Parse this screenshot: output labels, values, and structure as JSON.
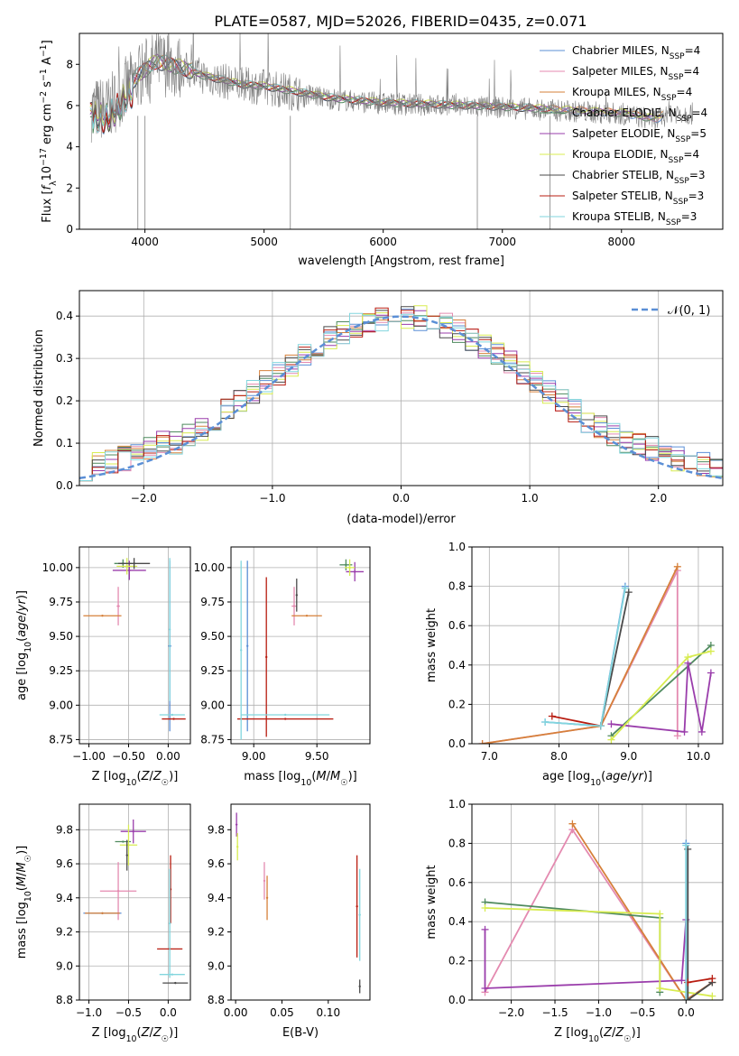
{
  "figure_title": "PLATE=0587, MJD=52026, FIBERID=0435, z=0.071",
  "colors": {
    "Chabrier MILES": "#5b8fd6",
    "Salpeter MILES": "#e48ab0",
    "Kroupa MILES": "#d6803a",
    "Chabrier ELODIE": "#4f8a5e",
    "Salpeter ELODIE": "#9a3dab",
    "Kroupa ELODIE": "#d8ec50",
    "Chabrier STELIB": "#4a4a4a",
    "Salpeter STELIB": "#b81c10",
    "Kroupa STELIB": "#82d6de",
    "data": "#7f7f7f",
    "normal": "#5b8fd6"
  },
  "chart_data": [
    {
      "type": "line",
      "name": "spectrum",
      "xlabel": "wavelength [Angstrom, rest frame]",
      "ylabel": "Flux [f_λ 10^-17 erg cm^-2 s^-1 A^-1]",
      "xlim": [
        3450,
        8850
      ],
      "ylim": [
        0,
        9.5
      ],
      "xticks": [
        4000,
        5000,
        6000,
        7000,
        8000
      ],
      "yticks": [
        0,
        2,
        4,
        6,
        8
      ],
      "grid": false,
      "legend": "right",
      "legend_entries": [
        {
          "key": "Chabrier MILES",
          "label": "Chabrier MILES, N",
          "sub": "SSP",
          "tail": "=4"
        },
        {
          "key": "Salpeter MILES",
          "label": "Salpeter MILES, N",
          "sub": "SSP",
          "tail": "=4"
        },
        {
          "key": "Kroupa MILES",
          "label": "Kroupa MILES, N",
          "sub": "SSP",
          "tail": "=4"
        },
        {
          "key": "Chabrier ELODIE",
          "label": "Chabrier ELODIE, N",
          "sub": "SSP",
          "tail": "=4"
        },
        {
          "key": "Salpeter ELODIE",
          "label": "Salpeter ELODIE, N",
          "sub": "SSP",
          "tail": "=5"
        },
        {
          "key": "Kroupa ELODIE",
          "label": "Kroupa ELODIE, N",
          "sub": "SSP",
          "tail": "=4"
        },
        {
          "key": "Chabrier STELIB",
          "label": "Chabrier STELIB, N",
          "sub": "SSP",
          "tail": "=3"
        },
        {
          "key": "Salpeter STELIB",
          "label": "Salpeter STELIB, N",
          "sub": "SSP",
          "tail": "=3"
        },
        {
          "key": "Kroupa STELIB",
          "label": "Kroupa STELIB, N",
          "sub": "SSP",
          "tail": "=3"
        }
      ],
      "continuum": [
        [
          3550,
          5.8
        ],
        [
          3700,
          5.9
        ],
        [
          3850,
          6.9
        ],
        [
          4000,
          7.7
        ],
        [
          4100,
          8.1
        ],
        [
          4300,
          7.8
        ],
        [
          4500,
          7.4
        ],
        [
          4800,
          7.0
        ],
        [
          5000,
          6.9
        ],
        [
          5300,
          6.6
        ],
        [
          5600,
          6.3
        ],
        [
          6000,
          6.1
        ],
        [
          6500,
          6.0
        ],
        [
          7000,
          5.9
        ],
        [
          7500,
          5.75
        ],
        [
          8000,
          5.6
        ],
        [
          8300,
          5.3
        ],
        [
          8400,
          5.7
        ],
        [
          8600,
          5.6
        ]
      ]
    },
    {
      "type": "line",
      "name": "residual-histogram",
      "xlabel": "(data-model)/error",
      "ylabel": "Normed distribution",
      "xlim": [
        -2.5,
        2.5
      ],
      "ylim": [
        0,
        0.46
      ],
      "xticks": [
        -2,
        -1,
        0,
        1,
        2
      ],
      "yticks": [
        0.0,
        0.1,
        0.2,
        0.3,
        0.4
      ],
      "grid": true,
      "legend": "top-right",
      "legend_entries": [
        {
          "key": "normal",
          "label": "𝒩(0, 1)"
        }
      ]
    },
    {
      "type": "scatter",
      "name": "age-vs-Z",
      "xlabel": "Z [log10(Z/Z☉)]",
      "ylabel": "age [log10(age/yr)]",
      "xlim": [
        -1.12,
        0.28
      ],
      "ylim": [
        8.72,
        10.15
      ],
      "xticks": [
        -1.0,
        -0.5,
        0.0
      ],
      "yticks": [
        8.75,
        9.0,
        9.25,
        9.5,
        9.75,
        10.0
      ],
      "grid": true,
      "points": [
        {
          "k": "Chabrier MILES",
          "x": 0.02,
          "y": 9.43,
          "xe": 0.02,
          "ye": 0.62
        },
        {
          "k": "Salpeter MILES",
          "x": -0.63,
          "y": 9.72,
          "xe": 0.02,
          "ye": 0.14
        },
        {
          "k": "Kroupa MILES",
          "x": -0.83,
          "y": 9.65,
          "xe": 0.24,
          "ye": 0.0
        },
        {
          "k": "Chabrier ELODIE",
          "x": -0.57,
          "y": 10.03,
          "xe": 0.11,
          "ye": 0.03
        },
        {
          "k": "Salpeter ELODIE",
          "x": -0.49,
          "y": 9.98,
          "xe": 0.21,
          "ye": 0.07
        },
        {
          "k": "Kroupa ELODIE",
          "x": -0.52,
          "y": 10.01,
          "xe": 0.13,
          "ye": 0.06
        },
        {
          "k": "Chabrier STELIB",
          "x": -0.43,
          "y": 10.03,
          "xe": 0.2,
          "ye": 0.04
        },
        {
          "k": "Salpeter STELIB",
          "x": 0.07,
          "y": 8.9,
          "xe": 0.15,
          "ye": 0.0
        },
        {
          "k": "Kroupa STELIB",
          "x": 0.05,
          "y": 8.93,
          "xe": 0.16,
          "ye": 0.0
        },
        {
          "k": "Kroupa STELIB",
          "x": 0.02,
          "y": 9.55,
          "xe": 0.0,
          "ye": 0.52
        }
      ]
    },
    {
      "type": "scatter",
      "name": "age-vs-mass",
      "xlabel": "mass [log10(M/M☉)]",
      "ylabel": "",
      "xlim": [
        8.82,
        9.92
      ],
      "ylim": [
        8.72,
        10.15
      ],
      "xticks": [
        9.0,
        9.5
      ],
      "yticks": [
        8.75,
        9.0,
        9.25,
        9.5,
        9.75,
        10.0
      ],
      "grid": true,
      "points": [
        {
          "k": "Chabrier MILES",
          "x": 8.95,
          "y": 9.43,
          "xe": 0.0,
          "ye": 0.62
        },
        {
          "k": "Salpeter MILES",
          "x": 9.32,
          "y": 9.72,
          "xe": 0.02,
          "ye": 0.14
        },
        {
          "k": "Kroupa MILES",
          "x": 9.42,
          "y": 9.65,
          "xe": 0.12,
          "ye": 0.0
        },
        {
          "k": "Chabrier ELODIE",
          "x": 9.73,
          "y": 10.02,
          "xe": 0.05,
          "ye": 0.04
        },
        {
          "k": "Salpeter ELODIE",
          "x": 9.8,
          "y": 9.97,
          "xe": 0.07,
          "ye": 0.07
        },
        {
          "k": "Kroupa ELODIE",
          "x": 9.76,
          "y": 10.0,
          "xe": 0.04,
          "ye": 0.06
        },
        {
          "k": "Chabrier STELIB",
          "x": 9.34,
          "y": 9.8,
          "xe": 0.0,
          "ye": 0.12
        },
        {
          "k": "Salpeter STELIB",
          "x": 9.1,
          "y": 9.35,
          "xe": 0.0,
          "ye": 0.58
        },
        {
          "k": "Salpeter STELIB",
          "x": 9.25,
          "y": 8.9,
          "xe": 0.38,
          "ye": 0.0
        },
        {
          "k": "Kroupa STELIB",
          "x": 9.25,
          "y": 8.93,
          "xe": 0.35,
          "ye": 0.0
        },
        {
          "k": "Kroupa STELIB",
          "x": 8.9,
          "y": 9.4,
          "xe": 0.0,
          "ye": 0.65
        }
      ]
    },
    {
      "type": "line",
      "name": "mass-weight-vs-age",
      "xlabel": "age [log10(age/yr)]",
      "ylabel": "mass weight",
      "xlim": [
        6.75,
        10.35
      ],
      "ylim": [
        0,
        1.0
      ],
      "xticks": [
        7,
        8,
        9,
        10
      ],
      "yticks": [
        0.0,
        0.2,
        0.4,
        0.6,
        0.8,
        1.0
      ],
      "grid": true,
      "series": [
        {
          "k": "Chabrier MILES",
          "pts": [
            [
              7.8,
              0.11
            ],
            [
              8.6,
              0.09
            ],
            [
              8.95,
              0.8
            ]
          ]
        },
        {
          "k": "Salpeter MILES",
          "pts": [
            [
              6.9,
              0.0
            ],
            [
              8.6,
              0.09
            ],
            [
              9.7,
              0.88
            ],
            [
              9.7,
              0.04
            ]
          ]
        },
        {
          "k": "Kroupa MILES",
          "pts": [
            [
              6.9,
              0.0
            ],
            [
              8.6,
              0.09
            ],
            [
              9.7,
              0.9
            ]
          ]
        },
        {
          "k": "Chabrier ELODIE",
          "pts": [
            [
              8.75,
              0.04
            ],
            [
              10.18,
              0.5
            ]
          ]
        },
        {
          "k": "Salpeter ELODIE",
          "pts": [
            [
              8.75,
              0.1
            ],
            [
              9.8,
              0.06
            ],
            [
              9.85,
              0.41
            ],
            [
              10.05,
              0.06
            ],
            [
              10.18,
              0.36
            ]
          ]
        },
        {
          "k": "Kroupa ELODIE",
          "pts": [
            [
              8.75,
              0.02
            ],
            [
              9.85,
              0.44
            ],
            [
              10.18,
              0.47
            ]
          ]
        },
        {
          "k": "Chabrier STELIB",
          "pts": [
            [
              8.6,
              0.09
            ],
            [
              9.0,
              0.77
            ]
          ]
        },
        {
          "k": "Salpeter STELIB",
          "pts": [
            [
              7.9,
              0.14
            ],
            [
              8.6,
              0.09
            ]
          ]
        },
        {
          "k": "Kroupa STELIB",
          "pts": [
            [
              7.8,
              0.11
            ],
            [
              8.6,
              0.09
            ],
            [
              8.95,
              0.79
            ]
          ]
        }
      ]
    },
    {
      "type": "scatter",
      "name": "mass-vs-Z",
      "xlabel": "Z [log10(Z/Z☉)]",
      "ylabel": "mass [log10(M/M☉)]",
      "xlim": [
        -1.12,
        0.28
      ],
      "ylim": [
        8.8,
        9.95
      ],
      "xticks": [
        -1.0,
        -0.5,
        0.0
      ],
      "yticks": [
        8.8,
        9.0,
        9.2,
        9.4,
        9.6,
        9.8
      ],
      "grid": true,
      "points": [
        {
          "k": "Chabrier MILES",
          "x": -0.83,
          "y": 9.31,
          "xe": 0.24,
          "ye": 0.0
        },
        {
          "k": "Salpeter MILES",
          "x": -0.63,
          "y": 9.44,
          "xe": 0.23,
          "ye": 0.17
        },
        {
          "k": "Kroupa MILES",
          "x": -0.83,
          "y": 9.31,
          "xe": 0.22,
          "ye": 0.0
        },
        {
          "k": "Chabrier ELODIE",
          "x": -0.57,
          "y": 9.73,
          "xe": 0.1,
          "ye": 0.0
        },
        {
          "k": "Salpeter ELODIE",
          "x": -0.44,
          "y": 9.79,
          "xe": 0.16,
          "ye": 0.07
        },
        {
          "k": "Kroupa ELODIE",
          "x": -0.5,
          "y": 9.71,
          "xe": 0.11,
          "ye": 0.12
        },
        {
          "k": "Chabrier STELIB",
          "x": -0.52,
          "y": 9.65,
          "xe": 0.0,
          "ye": 0.09
        },
        {
          "k": "Salpeter STELIB",
          "x": 0.02,
          "y": 9.1,
          "xe": 0.16,
          "ye": 0.0
        },
        {
          "k": "Salpeter STELIB",
          "x": 0.03,
          "y": 9.45,
          "xe": 0.0,
          "ye": 0.2
        },
        {
          "k": "Kroupa STELIB",
          "x": 0.05,
          "y": 8.95,
          "xe": 0.16,
          "ye": 0.0
        },
        {
          "k": "Kroupa STELIB",
          "x": 0.02,
          "y": 9.25,
          "xe": 0.0,
          "ye": 0.32
        },
        {
          "k": "Chabrier STELIB",
          "x": 0.09,
          "y": 8.9,
          "xe": 0.16,
          "ye": 0.0
        }
      ]
    },
    {
      "type": "scatter",
      "name": "mass-vs-ebv",
      "xlabel": "E(B-V)",
      "ylabel": "",
      "xlim": [
        -0.005,
        0.145
      ],
      "ylim": [
        8.8,
        9.95
      ],
      "xticks": [
        0.0,
        0.05,
        0.1
      ],
      "xticklabels": [
        "0.00",
        "0.05",
        "0.10"
      ],
      "yticks": [
        8.8,
        9.0,
        9.2,
        9.4,
        9.6,
        9.8
      ],
      "grid": false,
      "points": [
        {
          "k": "Salpeter ELODIE",
          "x": 0.001,
          "y": 9.83,
          "xe": 0.0,
          "ye": 0.07
        },
        {
          "k": "Kroupa ELODIE",
          "x": 0.002,
          "y": 9.7,
          "xe": 0.0,
          "ye": 0.08
        },
        {
          "k": "Salpeter MILES",
          "x": 0.031,
          "y": 9.5,
          "xe": 0.0,
          "ye": 0.11
        },
        {
          "k": "Kroupa MILES",
          "x": 0.034,
          "y": 9.4,
          "xe": 0.0,
          "ye": 0.13
        },
        {
          "k": "Salpeter STELIB",
          "x": 0.131,
          "y": 9.35,
          "xe": 0.0,
          "ye": 0.3
        },
        {
          "k": "Kroupa STELIB",
          "x": 0.134,
          "y": 9.3,
          "xe": 0.0,
          "ye": 0.27
        },
        {
          "k": "Chabrier STELIB",
          "x": 0.134,
          "y": 8.88,
          "xe": 0.0,
          "ye": 0.04
        }
      ]
    },
    {
      "type": "line",
      "name": "mass-weight-vs-Z",
      "xlabel": "Z [log10(Z/Z☉)]",
      "ylabel": "mass weight",
      "xlim": [
        -2.45,
        0.42
      ],
      "ylim": [
        0,
        1.0
      ],
      "xticks": [
        -2.0,
        -1.5,
        -1.0,
        -0.5,
        0.0
      ],
      "yticks": [
        0.0,
        0.2,
        0.4,
        0.6,
        0.8,
        1.0
      ],
      "grid": true,
      "series": [
        {
          "k": "Chabrier MILES",
          "pts": [
            [
              0.0,
              0.8
            ],
            [
              0.0,
              0.0
            ]
          ]
        },
        {
          "k": "Salpeter MILES",
          "pts": [
            [
              -2.3,
              0.04
            ],
            [
              -1.3,
              0.87
            ],
            [
              0.0,
              0.0
            ],
            [
              0.3,
              0.09
            ]
          ]
        },
        {
          "k": "Kroupa MILES",
          "pts": [
            [
              -1.3,
              0.9
            ],
            [
              0.0,
              0.0
            ],
            [
              0.3,
              0.09
            ]
          ]
        },
        {
          "k": "Chabrier ELODIE",
          "pts": [
            [
              -2.3,
              0.5
            ],
            [
              -0.3,
              0.42
            ],
            [
              -0.3,
              0.04
            ]
          ]
        },
        {
          "k": "Salpeter ELODIE",
          "pts": [
            [
              -2.3,
              0.36
            ],
            [
              -2.3,
              0.06
            ],
            [
              -0.05,
              0.1
            ],
            [
              0.0,
              0.41
            ]
          ]
        },
        {
          "k": "Kroupa ELODIE",
          "pts": [
            [
              -2.3,
              0.47
            ],
            [
              -0.3,
              0.44
            ],
            [
              -0.3,
              0.06
            ],
            [
              0.3,
              0.02
            ]
          ]
        },
        {
          "k": "Chabrier STELIB",
          "pts": [
            [
              0.02,
              0.77
            ],
            [
              0.02,
              0.0
            ],
            [
              0.3,
              0.09
            ]
          ]
        },
        {
          "k": "Salpeter STELIB",
          "pts": [
            [
              0.02,
              0.09
            ],
            [
              0.3,
              0.11
            ]
          ]
        },
        {
          "k": "Kroupa STELIB",
          "pts": [
            [
              0.0,
              0.79
            ],
            [
              0.0,
              0.0
            ]
          ]
        }
      ]
    }
  ]
}
